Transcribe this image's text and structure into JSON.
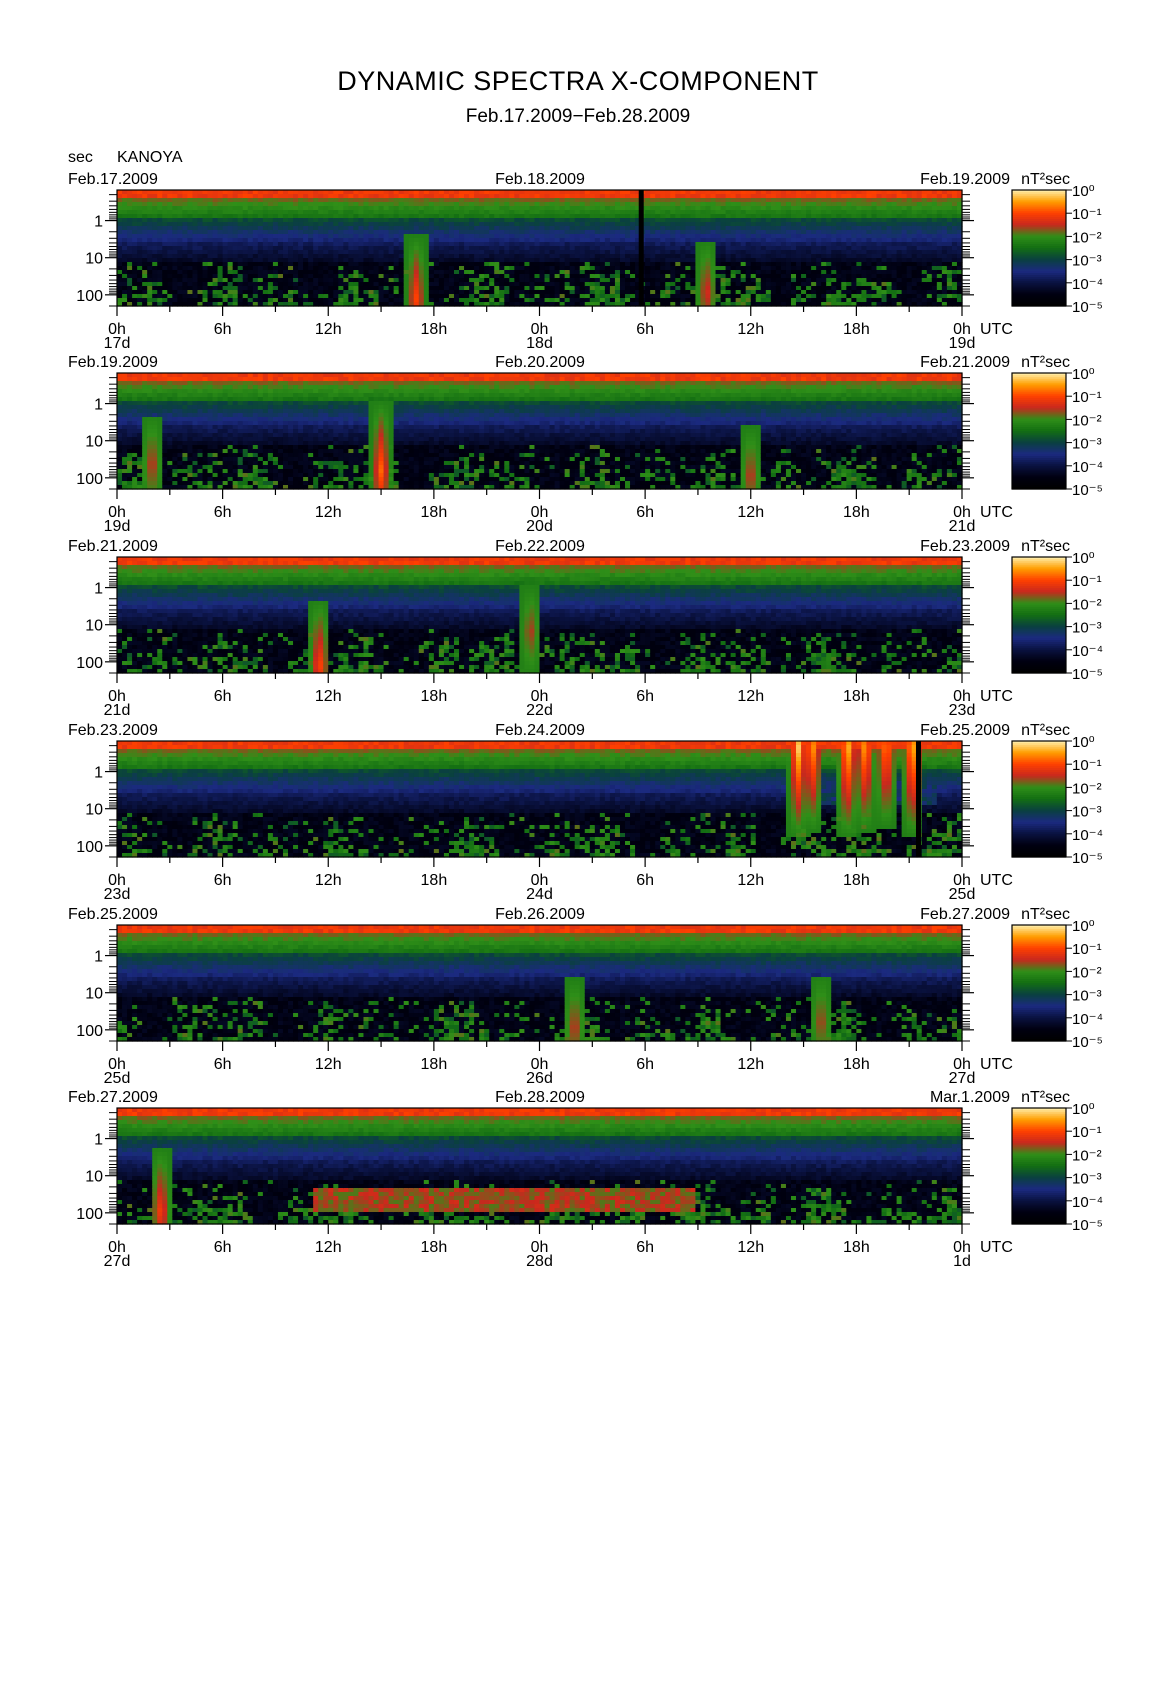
{
  "title": "DYNAMIC SPECTRA X-COMPONENT",
  "subtitle": "Feb.17.2009−Feb.28.2009",
  "station_prefix": "sec",
  "station": "KANOYA",
  "colors": {
    "background": "#ffffff",
    "colormap": [
      "#000000",
      "#000010",
      "#0a1240",
      "#1b2a80",
      "#0a4040",
      "#136e13",
      "#2f8f18",
      "#c8281e",
      "#ff4000",
      "#ff9e00",
      "#fff0b0"
    ]
  },
  "chart_data": {
    "type": "heatmap",
    "panels": [
      {
        "left_date": "Feb.17.2009",
        "mid_date": "Feb.18.2009",
        "right_date": "Feb.19.2009",
        "tick_labels": [
          "0h",
          "6h",
          "12h",
          "18h",
          "0h",
          "6h",
          "12h",
          "18h",
          "0h"
        ],
        "day_labels": [
          "17d",
          "18d",
          "19d"
        ],
        "gaps_hour": [
          29.75
        ],
        "bursts": [
          {
            "h": 17,
            "p": 0.95,
            "i": 0.6
          },
          {
            "h": 33.5,
            "p": 0.9,
            "i": 0.45
          }
        ]
      },
      {
        "left_date": "Feb.19.2009",
        "mid_date": "Feb.20.2009",
        "right_date": "Feb.21.2009",
        "tick_labels": [
          "0h",
          "6h",
          "12h",
          "18h",
          "0h",
          "6h",
          "12h",
          "18h",
          "0h"
        ],
        "day_labels": [
          "19d",
          "20d",
          "21d"
        ],
        "gaps_hour": [],
        "bursts": [
          {
            "h": 15,
            "p": 0.85,
            "i": 0.7
          },
          {
            "h": 2,
            "p": 0.8,
            "i": 0.4
          },
          {
            "h": 36,
            "p": 0.9,
            "i": 0.4
          }
        ]
      },
      {
        "left_date": "Feb.21.2009",
        "mid_date": "Feb.22.2009",
        "right_date": "Feb.23.2009",
        "tick_labels": [
          "0h",
          "6h",
          "12h",
          "18h",
          "0h",
          "6h",
          "12h",
          "18h",
          "0h"
        ],
        "day_labels": [
          "21d",
          "22d",
          "23d"
        ],
        "gaps_hour": [],
        "bursts": [
          {
            "h": 11.5,
            "p": 0.95,
            "i": 0.65
          },
          {
            "h": 23.5,
            "p": 0.65,
            "i": 0.35
          }
        ]
      },
      {
        "left_date": "Feb.23.2009",
        "mid_date": "Feb.24.2009",
        "right_date": "Feb.25.2009",
        "tick_labels": [
          "0h",
          "6h",
          "12h",
          "18h",
          "0h",
          "6h",
          "12h",
          "18h",
          "0h"
        ],
        "day_labels": [
          "23d",
          "24d",
          "25d"
        ],
        "gaps_hour": [
          45.5
        ],
        "bursts": [
          {
            "h": 38.7,
            "p": 0.05,
            "i": 1.0
          },
          {
            "h": 39.5,
            "p": 0.05,
            "i": 0.9
          },
          {
            "h": 41.5,
            "p": 0.05,
            "i": 1.0
          },
          {
            "h": 42.5,
            "p": 0.05,
            "i": 0.9
          },
          {
            "h": 43.7,
            "p": 0.05,
            "i": 0.85
          },
          {
            "h": 45.2,
            "p": 0.05,
            "i": 1.0
          }
        ],
        "storm_range_hour": [
          38.2,
          46.5
        ]
      },
      {
        "left_date": "Feb.25.2009",
        "mid_date": "Feb.26.2009",
        "right_date": "Feb.27.2009",
        "tick_labels": [
          "0h",
          "6h",
          "12h",
          "18h",
          "0h",
          "6h",
          "12h",
          "18h",
          "0h"
        ],
        "day_labels": [
          "25d",
          "26d",
          "27d"
        ],
        "gaps_hour": [],
        "bursts": [
          {
            "h": 26,
            "p": 0.9,
            "i": 0.4
          },
          {
            "h": 40,
            "p": 0.85,
            "i": 0.35
          }
        ]
      },
      {
        "left_date": "Feb.27.2009",
        "mid_date": "Feb.28.2009",
        "right_date": "Mar.1.2009",
        "tick_labels": [
          "0h",
          "6h",
          "12h",
          "18h",
          "0h",
          "6h",
          "12h",
          "18h",
          "0h"
        ],
        "day_labels": [
          "27d",
          "28d",
          "1d"
        ],
        "gaps_hour": [],
        "red_band_range_hour": [
          11,
          33
        ],
        "bursts": [
          {
            "h": 2.5,
            "p": 0.9,
            "i": 0.6
          }
        ]
      }
    ],
    "x_unit": "UTC",
    "x_range_hours": [
      0,
      48
    ],
    "y_unit": "sec",
    "y_scale": "log",
    "y_range": [
      0.15,
      200
    ],
    "y_tick_labels": [
      "1",
      "10",
      "100"
    ],
    "colorbar": {
      "unit_label": "nT²sec",
      "tick_labels": [
        "10⁰",
        "10⁻¹",
        "10⁻²",
        "10⁻³",
        "10⁻⁴",
        "10⁻⁵"
      ],
      "range": [
        1e-05,
        1
      ]
    }
  }
}
